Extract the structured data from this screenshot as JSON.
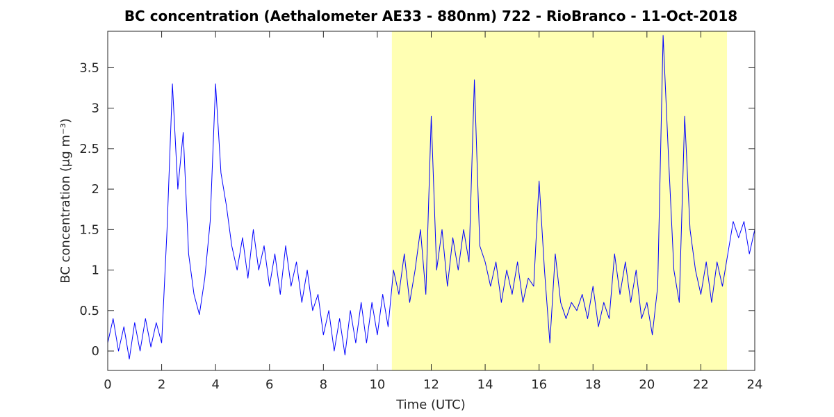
{
  "chart_data": {
    "type": "line",
    "title": "BC concentration (Aethalometer AE33 - 880nm) 722 - RioBranco - 11-Oct-2018",
    "xlabel": "Time (UTC)",
    "ylabel": "BC concentration (μg m⁻³)",
    "color": "#0000ff",
    "highlight": {
      "xlim": [
        10.54,
        22.97
      ],
      "color": "#ffffb3"
    },
    "xlim": [
      0,
      24
    ],
    "xticks": [
      0,
      2,
      4,
      6,
      8,
      10,
      12,
      14,
      16,
      18,
      20,
      22,
      24
    ],
    "ylim": [
      -0.24,
      3.95
    ],
    "yticks": [
      0,
      0.5,
      1,
      1.5,
      2,
      2.5,
      3,
      3.5
    ],
    "grid": false,
    "x": [
      0,
      0.2,
      0.4,
      0.6,
      0.8,
      1,
      1.2,
      1.4,
      1.6,
      1.8,
      2,
      2.2,
      2.4,
      2.6,
      2.8,
      3,
      3.2,
      3.4,
      3.6,
      3.8,
      4,
      4.2,
      4.4,
      4.6,
      4.8,
      5,
      5.2,
      5.4,
      5.6,
      5.8,
      6,
      6.2,
      6.4,
      6.6,
      6.8,
      7,
      7.2,
      7.4,
      7.6,
      7.8,
      8,
      8.2,
      8.4,
      8.6,
      8.8,
      9,
      9.2,
      9.4,
      9.6,
      9.8,
      10,
      10.2,
      10.4,
      10.6,
      10.8,
      11,
      11.2,
      11.4,
      11.6,
      11.8,
      12,
      12.2,
      12.4,
      12.6,
      12.8,
      13,
      13.2,
      13.4,
      13.6,
      13.8,
      14,
      14.2,
      14.4,
      14.6,
      14.8,
      15,
      15.2,
      15.4,
      15.6,
      15.8,
      16,
      16.2,
      16.4,
      16.6,
      16.8,
      17,
      17.2,
      17.4,
      17.6,
      17.8,
      18,
      18.2,
      18.4,
      18.6,
      18.8,
      19,
      19.2,
      19.4,
      19.6,
      19.8,
      20,
      20.2,
      20.4,
      20.6,
      20.8,
      21,
      21.2,
      21.4,
      21.6,
      21.8,
      22,
      22.2,
      22.4,
      22.6,
      22.8,
      23,
      23.2,
      23.4,
      23.6,
      23.8,
      24
    ],
    "values": [
      0.1,
      0.4,
      0.0,
      0.3,
      -0.1,
      0.35,
      0.0,
      0.4,
      0.05,
      0.35,
      0.1,
      1.5,
      3.3,
      2.0,
      2.7,
      1.2,
      0.7,
      0.45,
      0.9,
      1.6,
      3.3,
      2.2,
      1.8,
      1.3,
      1.0,
      1.4,
      0.9,
      1.5,
      1.0,
      1.3,
      0.8,
      1.2,
      0.7,
      1.3,
      0.8,
      1.1,
      0.6,
      1.0,
      0.5,
      0.7,
      0.2,
      0.5,
      0.0,
      0.4,
      -0.05,
      0.5,
      0.1,
      0.6,
      0.1,
      0.6,
      0.2,
      0.7,
      0.3,
      1.0,
      0.7,
      1.2,
      0.6,
      1.0,
      1.5,
      0.7,
      2.9,
      1.0,
      1.5,
      0.8,
      1.4,
      1.0,
      1.5,
      1.1,
      3.35,
      1.3,
      1.1,
      0.8,
      1.1,
      0.6,
      1.0,
      0.7,
      1.1,
      0.6,
      0.9,
      0.8,
      2.1,
      1.0,
      0.1,
      1.2,
      0.6,
      0.4,
      0.6,
      0.5,
      0.7,
      0.4,
      0.8,
      0.3,
      0.6,
      0.4,
      1.2,
      0.7,
      1.1,
      0.6,
      1.0,
      0.4,
      0.6,
      0.2,
      0.8,
      3.9,
      2.4,
      1.0,
      0.6,
      2.9,
      1.5,
      1.0,
      0.7,
      1.1,
      0.6,
      1.1,
      0.8,
      1.2,
      1.6,
      1.4,
      1.6,
      1.2,
      1.5
    ]
  }
}
